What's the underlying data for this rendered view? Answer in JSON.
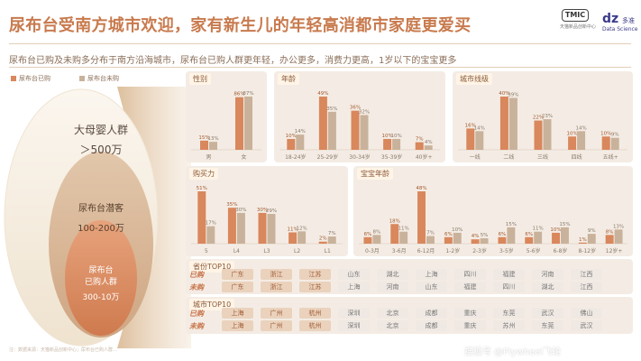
{
  "title": "尿布台受南方城市欢迎，家有新生儿的年轻高消都市家庭更爱买",
  "subtitle": "尿布台已购及未购多分布于南方沿海城市，尿布台已购人群更年轻，办公更多，消费力更高，1岁以下的宝宝更多",
  "logos": {
    "tmic": "TMIC",
    "tmic_caption": "天猫新品创新中心",
    "dz": "dz",
    "dz_tag": "多准",
    "dz_caption": "Data Science"
  },
  "legend": {
    "purchased": "尿布台已购",
    "not_purchased": "尿布台未购"
  },
  "colors": {
    "purchased": "#d9875c",
    "not_purchased": "#c9b29b",
    "accent": "#c87a4d"
  },
  "funnel": {
    "outer": {
      "label": "大母婴人群",
      "value": "＞500万"
    },
    "middle": {
      "label": "尿布台潜客",
      "value": "100-200万"
    },
    "inner": {
      "label": "尿布台",
      "label2": "已购人群",
      "value": "300-10万"
    }
  },
  "chart_data": [
    {
      "id": "gender",
      "title": "性别",
      "type": "bar",
      "categories": [
        "男",
        "女"
      ],
      "series": [
        {
          "name": "尿布台已购",
          "values": [
            15,
            86
          ]
        },
        {
          "name": "尿布台未购",
          "values": [
            13,
            87
          ]
        }
      ],
      "labels": [
        [
          "15%",
          "86%"
        ],
        [
          "13%",
          "87%"
        ]
      ]
    },
    {
      "id": "age",
      "title": "年龄",
      "type": "bar",
      "categories": [
        "18-24岁",
        "25-29岁",
        "30-34岁",
        "35-39岁",
        "40岁+"
      ],
      "series": [
        {
          "name": "尿布台已购",
          "values": [
            10,
            49,
            36,
            10,
            7
          ]
        },
        {
          "name": "尿布台未购",
          "values": [
            14,
            35,
            32,
            10,
            4
          ]
        }
      ],
      "labels": [
        [
          "10%",
          "49%",
          "36%",
          "10%",
          "7%"
        ],
        [
          "14%",
          "35%",
          "32%",
          "10%",
          "4%"
        ]
      ]
    },
    {
      "id": "city",
      "title": "城市线级",
      "type": "bar",
      "categories": [
        "一线",
        "二线",
        "三线",
        "四线",
        "五线+"
      ],
      "series": [
        {
          "name": "尿布台已购",
          "values": [
            16,
            40,
            22,
            10,
            10
          ]
        },
        {
          "name": "尿布台未购",
          "values": [
            14,
            39,
            23,
            14,
            9
          ]
        }
      ],
      "labels": [
        [
          "16%",
          "40%",
          "22%",
          "10%",
          "10%"
        ],
        [
          "14%",
          "39%",
          "23%",
          "14%",
          "9%"
        ]
      ]
    },
    {
      "id": "spending",
      "title": "购买力",
      "type": "bar",
      "categories": [
        "5",
        "L4",
        "L3",
        "L2",
        "L1"
      ],
      "series": [
        {
          "name": "尿布台已购",
          "values": [
            51,
            35,
            30,
            11,
            2
          ]
        },
        {
          "name": "尿布台未购",
          "values": [
            17,
            30,
            29,
            12,
            7
          ]
        }
      ],
      "labels": [
        [
          "51%",
          "35%",
          "30%",
          "11%",
          "2%"
        ],
        [
          "17%",
          "30%",
          "29%",
          "12%",
          "7%"
        ]
      ]
    },
    {
      "id": "baby_age",
      "title": "宝宝年龄",
      "type": "bar",
      "categories": [
        "0-3月",
        "3-6月",
        "6-12月",
        "1-2岁",
        "2-3岁",
        "3-5岁",
        "5-6岁",
        "6-8岁",
        "8-12岁",
        "12岁+"
      ],
      "series": [
        {
          "name": "尿布台已购",
          "values": [
            6,
            18,
            48,
            6,
            4,
            6,
            6,
            10,
            1,
            8
          ]
        },
        {
          "name": "尿布台未购",
          "values": [
            8,
            11,
            7,
            10,
            5,
            15,
            11,
            15,
            9,
            13
          ]
        }
      ],
      "labels": [
        [
          "6%",
          "18%",
          "48%",
          "6%",
          "4%",
          "6%",
          "6%",
          "10%",
          "1%",
          "8%"
        ],
        [
          "8%",
          "11%",
          "7%",
          "10%",
          "5%",
          "15%",
          "11%",
          "15%",
          "9%",
          "13%"
        ]
      ]
    }
  ],
  "rank1": {
    "title": "省份TOP10",
    "purchased_label": "已购",
    "not_purchased_label": "未购",
    "purchased": [
      "广东",
      "浙江",
      "江苏",
      "山东",
      "湖北",
      "上海",
      "四川",
      "福建",
      "河南",
      "江西"
    ],
    "not_purchased": [
      "广东",
      "浙江",
      "江苏",
      "上海",
      "河南",
      "山东",
      "福建",
      "四川",
      "湖北",
      "江西"
    ]
  },
  "rank2": {
    "title": "城市TOP10",
    "purchased_label": "已购",
    "not_purchased_label": "未购",
    "purchased": [
      "上海",
      "广州",
      "杭州",
      "深圳",
      "北京",
      "成都",
      "重庆",
      "东莞",
      "武汉",
      "佛山"
    ],
    "not_purchased": [
      "上海",
      "广州",
      "杭州",
      "深圳",
      "北京",
      "成都",
      "重庆",
      "苏州",
      "东莞",
      "武汉"
    ]
  },
  "footer_note": "注：数据来源：天猫新品创新中心；尿布台已购人群…",
  "watermark": "搜狐号 @Flywheel飞轮"
}
